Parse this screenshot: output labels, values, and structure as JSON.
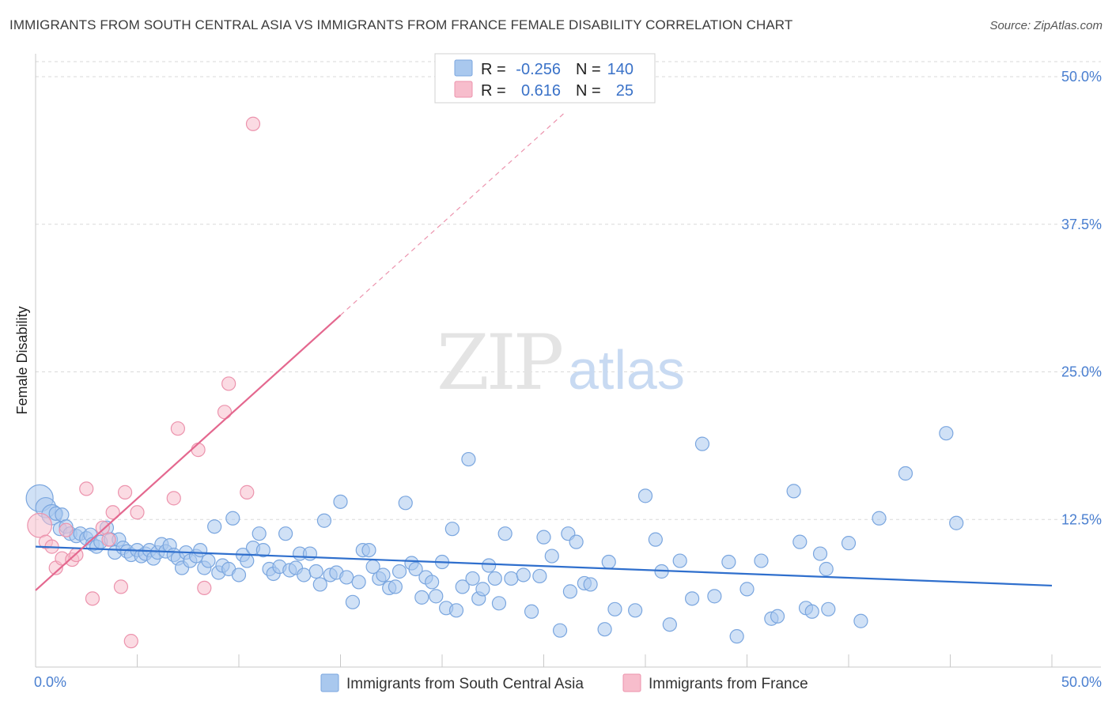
{
  "title": "IMMIGRANTS FROM SOUTH CENTRAL ASIA VS IMMIGRANTS FROM FRANCE FEMALE DISABILITY CORRELATION CHART",
  "source": "Source: ZipAtlas.com",
  "watermark": {
    "zip": "ZIP",
    "atlas": "atlas"
  },
  "colors": {
    "blue_fill": "#a9c8ee",
    "blue_stroke": "#7aa6df",
    "blue_line": "#2f6fcd",
    "pink_fill": "#f7bdcc",
    "pink_stroke": "#ec93ad",
    "pink_line": "#e4688f",
    "grid": "#d9d9d9",
    "tick_text": "#4a7fd0"
  },
  "legend": {
    "rows": [
      {
        "r_label": "R =",
        "r_value": "-0.256",
        "n_label": "N =",
        "n_value": "140"
      },
      {
        "r_label": "R =",
        "r_value": "0.616",
        "n_label": "N =",
        "n_value": "25"
      }
    ]
  },
  "chart_data": {
    "type": "scatter",
    "title": "IMMIGRANTS FROM SOUTH CENTRAL ASIA VS IMMIGRANTS FROM FRANCE FEMALE DISABILITY CORRELATION CHART",
    "xlabel": "",
    "ylabel": "Female Disability",
    "xlim": [
      0,
      50
    ],
    "ylim": [
      0,
      50
    ],
    "x_tick_labels": [
      "0.0%",
      "50.0%"
    ],
    "y_ticks": [
      12.5,
      25.0,
      37.5,
      50.0
    ],
    "y_tick_labels": [
      "12.5%",
      "25.0%",
      "37.5%",
      "50.0%"
    ],
    "grid": "horizontal dashed",
    "legend_position": "top-center",
    "series": [
      {
        "name": "Immigrants from South Central Asia",
        "color": "#a9c8ee",
        "r": -0.256,
        "n": 140,
        "trend": {
          "x": [
            0,
            50
          ],
          "y": [
            10.2,
            6.9
          ]
        },
        "points": [
          {
            "x": 0.2,
            "y": 14.3,
            "s": 2
          },
          {
            "x": 0.5,
            "y": 13.5,
            "s": 1.5
          },
          {
            "x": 0.8,
            "y": 12.9,
            "s": 1.5
          },
          {
            "x": 1.0,
            "y": 13.0
          },
          {
            "x": 1.3,
            "y": 12.9
          },
          {
            "x": 1.2,
            "y": 11.7
          },
          {
            "x": 1.5,
            "y": 11.9
          },
          {
            "x": 1.7,
            "y": 11.3
          },
          {
            "x": 2.0,
            "y": 11.1
          },
          {
            "x": 2.2,
            "y": 11.3
          },
          {
            "x": 2.5,
            "y": 10.9
          },
          {
            "x": 2.7,
            "y": 11.2
          },
          {
            "x": 2.8,
            "y": 10.4
          },
          {
            "x": 3.0,
            "y": 10.2
          },
          {
            "x": 3.2,
            "y": 10.6
          },
          {
            "x": 3.5,
            "y": 11.8
          },
          {
            "x": 3.7,
            "y": 10.8
          },
          {
            "x": 3.9,
            "y": 9.7
          },
          {
            "x": 4.1,
            "y": 10.8
          },
          {
            "x": 4.3,
            "y": 10.1
          },
          {
            "x": 4.5,
            "y": 9.8
          },
          {
            "x": 4.7,
            "y": 9.5
          },
          {
            "x": 5.0,
            "y": 9.9
          },
          {
            "x": 5.2,
            "y": 9.4
          },
          {
            "x": 5.4,
            "y": 9.6
          },
          {
            "x": 5.6,
            "y": 9.9
          },
          {
            "x": 5.8,
            "y": 9.2
          },
          {
            "x": 6.0,
            "y": 9.7
          },
          {
            "x": 6.2,
            "y": 10.4
          },
          {
            "x": 6.4,
            "y": 9.8
          },
          {
            "x": 6.6,
            "y": 10.3
          },
          {
            "x": 6.8,
            "y": 9.5
          },
          {
            "x": 7.0,
            "y": 9.2
          },
          {
            "x": 7.2,
            "y": 8.4
          },
          {
            "x": 7.4,
            "y": 9.7
          },
          {
            "x": 7.6,
            "y": 9.0
          },
          {
            "x": 7.9,
            "y": 9.4
          },
          {
            "x": 8.1,
            "y": 9.9
          },
          {
            "x": 8.3,
            "y": 8.4
          },
          {
            "x": 8.5,
            "y": 9.0
          },
          {
            "x": 8.8,
            "y": 11.9
          },
          {
            "x": 9.0,
            "y": 8.0
          },
          {
            "x": 9.2,
            "y": 8.6
          },
          {
            "x": 9.5,
            "y": 8.3
          },
          {
            "x": 9.7,
            "y": 12.6
          },
          {
            "x": 10.0,
            "y": 7.8
          },
          {
            "x": 10.2,
            "y": 9.5
          },
          {
            "x": 10.4,
            "y": 9.0
          },
          {
            "x": 10.7,
            "y": 10.1
          },
          {
            "x": 11.0,
            "y": 11.3
          },
          {
            "x": 11.2,
            "y": 9.9
          },
          {
            "x": 11.5,
            "y": 8.3
          },
          {
            "x": 11.7,
            "y": 7.9
          },
          {
            "x": 12.0,
            "y": 8.5
          },
          {
            "x": 12.3,
            "y": 11.3
          },
          {
            "x": 12.5,
            "y": 8.2
          },
          {
            "x": 12.8,
            "y": 8.4
          },
          {
            "x": 13.0,
            "y": 9.6
          },
          {
            "x": 13.2,
            "y": 7.8
          },
          {
            "x": 13.5,
            "y": 9.6
          },
          {
            "x": 13.8,
            "y": 8.1
          },
          {
            "x": 14.0,
            "y": 7.0
          },
          {
            "x": 14.2,
            "y": 12.4
          },
          {
            "x": 14.5,
            "y": 7.8
          },
          {
            "x": 14.8,
            "y": 8.0
          },
          {
            "x": 15.0,
            "y": 14.0
          },
          {
            "x": 15.3,
            "y": 7.6
          },
          {
            "x": 15.6,
            "y": 5.5
          },
          {
            "x": 15.9,
            "y": 7.2
          },
          {
            "x": 16.1,
            "y": 9.9
          },
          {
            "x": 16.4,
            "y": 9.9
          },
          {
            "x": 16.6,
            "y": 8.5
          },
          {
            "x": 16.9,
            "y": 7.5
          },
          {
            "x": 17.1,
            "y": 7.8
          },
          {
            "x": 17.4,
            "y": 6.7
          },
          {
            "x": 17.7,
            "y": 6.8
          },
          {
            "x": 17.9,
            "y": 8.1
          },
          {
            "x": 18.2,
            "y": 13.9
          },
          {
            "x": 18.5,
            "y": 8.8
          },
          {
            "x": 18.7,
            "y": 8.3
          },
          {
            "x": 19.0,
            "y": 5.9
          },
          {
            "x": 19.2,
            "y": 7.6
          },
          {
            "x": 19.5,
            "y": 7.2
          },
          {
            "x": 19.7,
            "y": 6.0
          },
          {
            "x": 20.0,
            "y": 8.9
          },
          {
            "x": 20.2,
            "y": 5.0
          },
          {
            "x": 20.5,
            "y": 11.7
          },
          {
            "x": 20.7,
            "y": 4.8
          },
          {
            "x": 21.0,
            "y": 6.8
          },
          {
            "x": 21.3,
            "y": 17.6
          },
          {
            "x": 21.5,
            "y": 7.5
          },
          {
            "x": 21.8,
            "y": 5.8
          },
          {
            "x": 22.0,
            "y": 6.6
          },
          {
            "x": 22.3,
            "y": 8.6
          },
          {
            "x": 22.6,
            "y": 7.5
          },
          {
            "x": 22.8,
            "y": 5.4
          },
          {
            "x": 23.1,
            "y": 11.3
          },
          {
            "x": 23.4,
            "y": 7.5
          },
          {
            "x": 24.0,
            "y": 7.8
          },
          {
            "x": 24.4,
            "y": 4.7
          },
          {
            "x": 24.8,
            "y": 7.7
          },
          {
            "x": 25.0,
            "y": 11.0
          },
          {
            "x": 25.4,
            "y": 9.4
          },
          {
            "x": 25.8,
            "y": 3.1
          },
          {
            "x": 26.2,
            "y": 11.3
          },
          {
            "x": 26.3,
            "y": 6.4
          },
          {
            "x": 26.6,
            "y": 10.6
          },
          {
            "x": 27.0,
            "y": 7.1
          },
          {
            "x": 27.3,
            "y": 7.0
          },
          {
            "x": 28.0,
            "y": 3.2
          },
          {
            "x": 28.2,
            "y": 8.9
          },
          {
            "x": 28.5,
            "y": 4.9
          },
          {
            "x": 29.5,
            "y": 4.8
          },
          {
            "x": 30.0,
            "y": 14.5
          },
          {
            "x": 30.5,
            "y": 10.8
          },
          {
            "x": 30.8,
            "y": 8.1
          },
          {
            "x": 31.2,
            "y": 3.6
          },
          {
            "x": 31.7,
            "y": 9.0
          },
          {
            "x": 32.3,
            "y": 5.8
          },
          {
            "x": 32.8,
            "y": 18.9
          },
          {
            "x": 33.4,
            "y": 6.0
          },
          {
            "x": 34.1,
            "y": 8.9
          },
          {
            "x": 34.5,
            "y": 2.6
          },
          {
            "x": 35.0,
            "y": 6.6
          },
          {
            "x": 35.7,
            "y": 9.0
          },
          {
            "x": 36.2,
            "y": 4.1
          },
          {
            "x": 36.5,
            "y": 4.3
          },
          {
            "x": 37.3,
            "y": 14.9
          },
          {
            "x": 37.6,
            "y": 10.6
          },
          {
            "x": 37.9,
            "y": 5.0
          },
          {
            "x": 38.2,
            "y": 4.7
          },
          {
            "x": 38.6,
            "y": 9.6
          },
          {
            "x": 38.9,
            "y": 8.3
          },
          {
            "x": 39.0,
            "y": 4.9
          },
          {
            "x": 40.0,
            "y": 10.5
          },
          {
            "x": 40.6,
            "y": 3.9
          },
          {
            "x": 41.5,
            "y": 12.6
          },
          {
            "x": 42.8,
            "y": 16.4
          },
          {
            "x": 44.8,
            "y": 19.8
          },
          {
            "x": 45.3,
            "y": 12.2
          }
        ]
      },
      {
        "name": "Immigrants from France",
        "color": "#f7bdcc",
        "r": 0.616,
        "n": 25,
        "trend": {
          "x": [
            0,
            15
          ],
          "y": [
            6.5,
            29.8
          ]
        },
        "trend_dashed_extension": {
          "x": [
            15,
            26
          ],
          "y": [
            29.8,
            46.9
          ]
        },
        "points": [
          {
            "x": 0.2,
            "y": 12.0,
            "s": 1.8
          },
          {
            "x": 0.5,
            "y": 10.6
          },
          {
            "x": 0.8,
            "y": 10.2
          },
          {
            "x": 1.0,
            "y": 8.4
          },
          {
            "x": 1.3,
            "y": 9.2
          },
          {
            "x": 1.5,
            "y": 11.6
          },
          {
            "x": 1.8,
            "y": 9.1
          },
          {
            "x": 2.0,
            "y": 9.5
          },
          {
            "x": 2.5,
            "y": 15.1
          },
          {
            "x": 2.8,
            "y": 5.8
          },
          {
            "x": 3.3,
            "y": 11.8
          },
          {
            "x": 3.6,
            "y": 10.8
          },
          {
            "x": 3.8,
            "y": 13.1
          },
          {
            "x": 4.2,
            "y": 6.8
          },
          {
            "x": 4.4,
            "y": 14.8
          },
          {
            "x": 4.7,
            "y": 2.2
          },
          {
            "x": 5.0,
            "y": 13.1
          },
          {
            "x": 6.8,
            "y": 14.3
          },
          {
            "x": 7.0,
            "y": 20.2
          },
          {
            "x": 8.0,
            "y": 18.4
          },
          {
            "x": 8.3,
            "y": 6.7
          },
          {
            "x": 9.3,
            "y": 21.6
          },
          {
            "x": 9.5,
            "y": 24.0
          },
          {
            "x": 10.4,
            "y": 14.8
          },
          {
            "x": 10.7,
            "y": 46.0
          }
        ]
      }
    ]
  }
}
